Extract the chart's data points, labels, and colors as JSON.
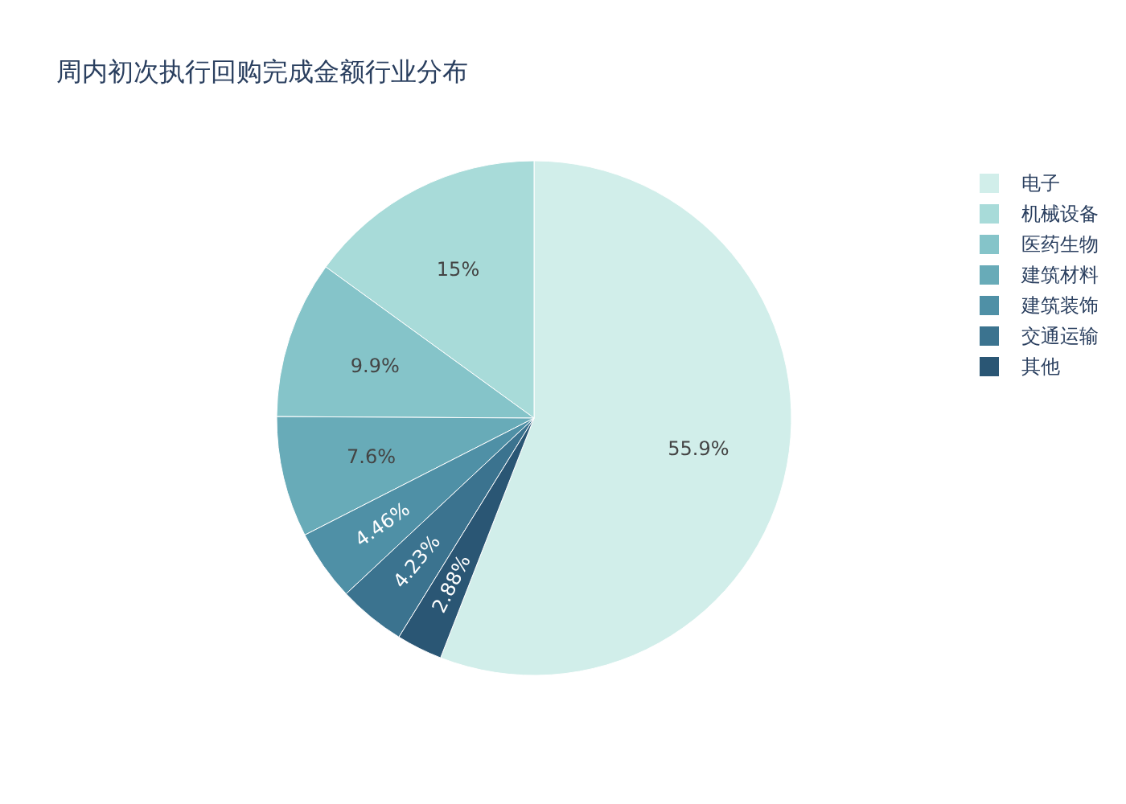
{
  "chart_data": {
    "type": "pie",
    "title": "周内初次执行回购完成金额行业分布",
    "categories": [
      "电子",
      "机械设备",
      "医药生物",
      "建筑材料",
      "建筑装饰",
      "交通运输",
      "其他"
    ],
    "values": [
      55.9,
      15,
      9.9,
      7.6,
      4.46,
      4.23,
      2.88
    ],
    "colors": [
      "#d1eeea",
      "#a8dbd9",
      "#85c4c9",
      "#68abb8",
      "#4f90a6",
      "#3b738f",
      "#2a5674"
    ],
    "value_labels": [
      "55.9%",
      "15%",
      "9.9%",
      "7.6%",
      "4.46%",
      "4.23%",
      "2.88%"
    ],
    "legend": "top right"
  }
}
